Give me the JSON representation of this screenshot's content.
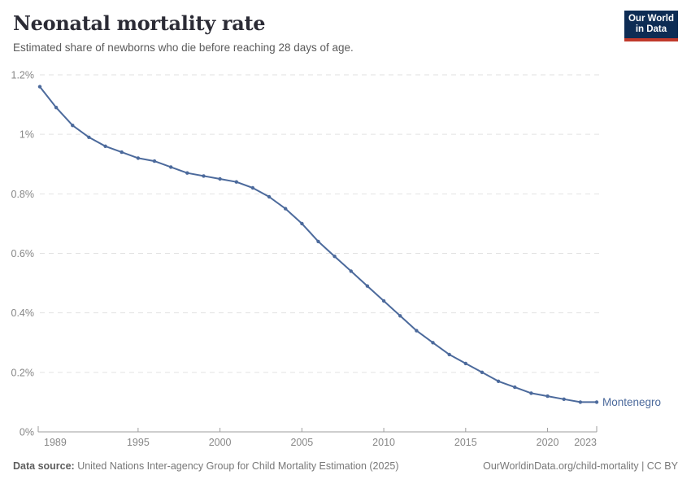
{
  "header": {
    "title": "Neonatal mortality rate",
    "subtitle": "Estimated share of newborns who die before reaching 28 days of age.",
    "logo": {
      "line1": "Our World",
      "line2": "in Data"
    }
  },
  "chart_data": {
    "type": "line",
    "title": "Neonatal mortality rate",
    "subtitle": "Estimated share of newborns who die before reaching 28 days of age.",
    "xlabel": "",
    "ylabel": "",
    "xlim": [
      1989,
      2023
    ],
    "ylim": [
      0,
      1.2
    ],
    "grid": "horizontal-dashed",
    "legend_position": "line-end-label",
    "x": [
      1989,
      1990,
      1991,
      1992,
      1993,
      1994,
      1995,
      1996,
      1997,
      1998,
      1999,
      2000,
      2001,
      2002,
      2003,
      2004,
      2005,
      2006,
      2007,
      2008,
      2009,
      2010,
      2011,
      2012,
      2013,
      2014,
      2015,
      2016,
      2017,
      2018,
      2019,
      2020,
      2021,
      2022,
      2023
    ],
    "series": [
      {
        "name": "Montenegro",
        "color": "#4C6A9C",
        "unit": "%",
        "values": [
          1.16,
          1.09,
          1.03,
          0.99,
          0.96,
          0.94,
          0.92,
          0.91,
          0.89,
          0.87,
          0.86,
          0.85,
          0.84,
          0.82,
          0.79,
          0.75,
          0.7,
          0.64,
          0.59,
          0.54,
          0.49,
          0.44,
          0.39,
          0.34,
          0.3,
          0.26,
          0.23,
          0.2,
          0.17,
          0.15,
          0.13,
          0.12,
          0.11,
          0.1,
          0.1
        ]
      }
    ],
    "yticks": [
      {
        "value": 0,
        "label": "0%"
      },
      {
        "value": 0.2,
        "label": "0.2%"
      },
      {
        "value": 0.4,
        "label": "0.4%"
      },
      {
        "value": 0.6,
        "label": "0.6%"
      },
      {
        "value": 0.8,
        "label": "0.8%"
      },
      {
        "value": 1.0,
        "label": "1%"
      },
      {
        "value": 1.2,
        "label": "1.2%"
      }
    ],
    "xticks": [
      {
        "value": 1989,
        "label": "1989"
      },
      {
        "value": 1995,
        "label": "1995"
      },
      {
        "value": 2000,
        "label": "2000"
      },
      {
        "value": 2005,
        "label": "2005"
      },
      {
        "value": 2010,
        "label": "2010"
      },
      {
        "value": 2015,
        "label": "2015"
      },
      {
        "value": 2020,
        "label": "2020"
      },
      {
        "value": 2023,
        "label": "2023"
      }
    ]
  },
  "footer": {
    "source_label": "Data source:",
    "source_text": " United Nations Inter-agency Group for Child Mortality Estimation (2025)",
    "link_text": "OurWorldinData.org/child-mortality | CC BY"
  },
  "colors": {
    "line": "#4C6A9C",
    "grid": "#e2e2e2",
    "axis": "#9d9d9d",
    "tick_label": "#878787",
    "logo_bg": "#0d2c54",
    "logo_red": "#c0392b"
  }
}
